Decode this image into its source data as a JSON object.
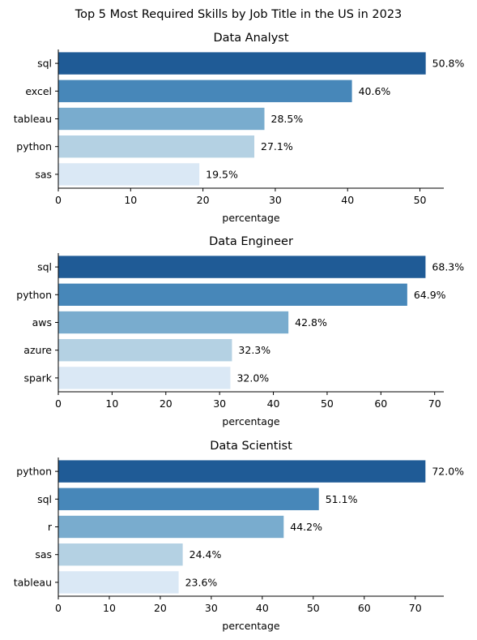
{
  "suptitle": "Top 5 Most Required Skills by Job Title in the US in 2023",
  "colors": [
    "#1f5b96",
    "#4787b9",
    "#79acce",
    "#b4d1e3",
    "#dae8f5"
  ],
  "chart_data": [
    {
      "type": "bar",
      "orientation": "horizontal",
      "title": "Data Analyst",
      "xlabel": "percentage",
      "ylabel": "",
      "categories": [
        "sql",
        "excel",
        "tableau",
        "python",
        "sas"
      ],
      "values": [
        50.8,
        40.6,
        28.5,
        27.1,
        19.5
      ],
      "data_labels": [
        "50.8%",
        "40.6%",
        "28.5%",
        "27.1%",
        "19.5%"
      ],
      "xlim": [
        0,
        53.3
      ],
      "xticks": [
        0,
        10,
        20,
        30,
        40,
        50
      ],
      "grid": false
    },
    {
      "type": "bar",
      "orientation": "horizontal",
      "title": "Data Engineer",
      "xlabel": "percentage",
      "ylabel": "",
      "categories": [
        "sql",
        "python",
        "aws",
        "azure",
        "spark"
      ],
      "values": [
        68.3,
        64.9,
        42.8,
        32.3,
        32.0
      ],
      "data_labels": [
        "68.3%",
        "64.9%",
        "42.8%",
        "32.3%",
        "32.0%"
      ],
      "xlim": [
        0,
        71.7
      ],
      "xticks": [
        0,
        10,
        20,
        30,
        40,
        50,
        60,
        70
      ],
      "grid": false
    },
    {
      "type": "bar",
      "orientation": "horizontal",
      "title": "Data Scientist",
      "xlabel": "percentage",
      "ylabel": "",
      "categories": [
        "python",
        "sql",
        "r",
        "sas",
        "tableau"
      ],
      "values": [
        72.0,
        51.1,
        44.2,
        24.4,
        23.6
      ],
      "data_labels": [
        "72.0%",
        "51.1%",
        "44.2%",
        "24.4%",
        "23.6%"
      ],
      "xlim": [
        0,
        75.6
      ],
      "xticks": [
        0,
        10,
        20,
        30,
        40,
        50,
        60,
        70
      ],
      "grid": false
    }
  ]
}
